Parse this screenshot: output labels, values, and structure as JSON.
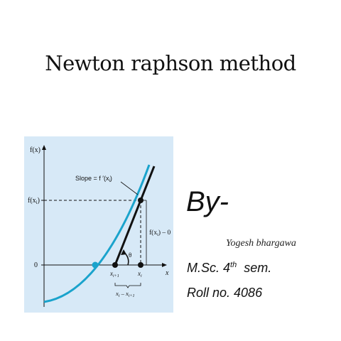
{
  "slide": {
    "title": "Newton raphson method",
    "by_label": "By-",
    "author": "Yogesh  bhargawa",
    "degree_prefix": "M.Sc. 4",
    "degree_sup": "th",
    "degree_suffix": "  sem.",
    "roll": "Roll no. 4086"
  },
  "figure": {
    "labels": {
      "y_axis": "f(x)",
      "x_axis": "x",
      "f_xi": "f(x",
      "zero": "0",
      "slope": "Slope = f ′(x",
      "rise": "f(x",
      "rise_suffix": ") – 0",
      "theta": "θ",
      "x_i1": "x",
      "x_i": "x",
      "run": "x",
      "run_minus": " – x",
      "sub_i": "i",
      "sub_i1": "i+1"
    },
    "colors": {
      "background": "#d7e9f7",
      "curve": "#1aa3cc",
      "tangent": "#111111",
      "axis": "#111111"
    }
  }
}
